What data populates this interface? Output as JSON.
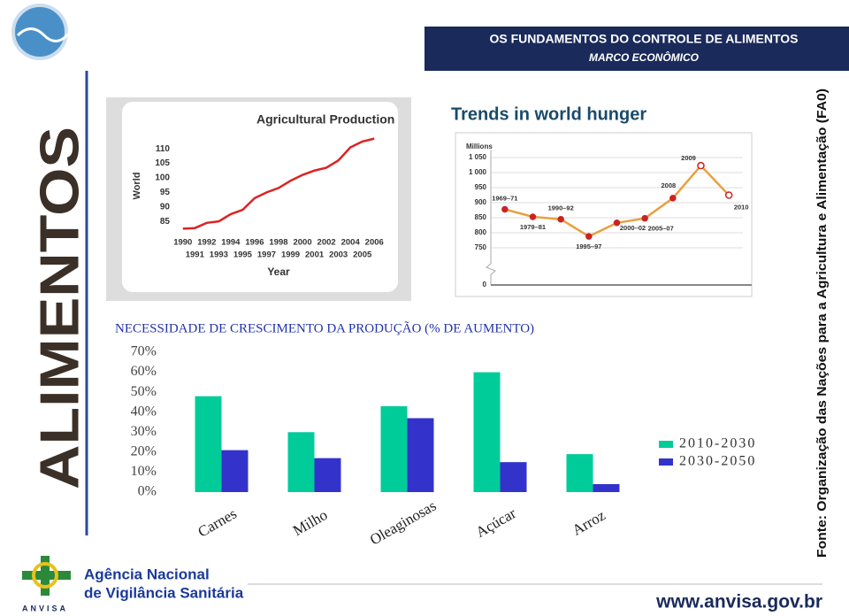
{
  "header": {
    "title": "OS FUNDAMENTOS DO CONTROLE DE ALIMENTOS",
    "subtitle": "MARCO ECONÔMICO"
  },
  "side_title": "ALIMENTOS",
  "source": "Fonte: Organização das Nações para a Agricultura e Alimentação (FA0)",
  "footer": {
    "agency_line1": "Agência Nacional",
    "agency_line2": "de Vigilância Sanitária",
    "logo_text": "ANVISA",
    "url": "www.anvisa.gov.br"
  },
  "chart_data": [
    {
      "type": "line",
      "title": "Agricultural Production",
      "ylabel": "World",
      "xlabel": "Year",
      "x": [
        1990,
        1991,
        1992,
        1993,
        1994,
        1995,
        1996,
        1997,
        1998,
        1999,
        2000,
        2001,
        2002,
        2003,
        2004,
        2005,
        2006
      ],
      "values": [
        82.5,
        82.7,
        84.5,
        85,
        87.5,
        89,
        93,
        95,
        96.5,
        99,
        101,
        102.5,
        103.5,
        106,
        110.5,
        112.5,
        113.5
      ],
      "color": "#dd2222",
      "xlim": [
        1989.5,
        2006.5
      ],
      "xticks": [
        1990,
        1991,
        1992,
        1993,
        1994,
        1995,
        1996,
        1997,
        1998,
        1999,
        2000,
        2001,
        2002,
        2003,
        2004,
        2005,
        2006
      ],
      "ylim": [
        82,
        114
      ],
      "yticks": [
        85,
        90,
        95,
        100,
        105,
        110
      ],
      "grid": false
    },
    {
      "type": "line",
      "title": "Trends in world hunger",
      "ylabel": "Millions",
      "categories": [
        "1969–71",
        "1979–81",
        "1990–92",
        "1995–97",
        "2000–02",
        "2005–07",
        "2008",
        "2009",
        "2010"
      ],
      "values": [
        878,
        853,
        845,
        788,
        833,
        848,
        915,
        1023,
        925
      ],
      "color": "#e8a040",
      "marker_color": "#cc2222",
      "ylim": [
        725,
        1075
      ],
      "axis_break": true,
      "yticks": [
        0,
        750,
        800,
        850,
        900,
        950,
        {
          "value": 1000,
          "label": "1 000"
        },
        {
          "value": 1050,
          "label": "1 050"
        }
      ],
      "grid": true
    },
    {
      "type": "bar",
      "title": "NECESSIDADE DE CRESCIMENTO DA PRODUÇÃO (% DE AUMENTO)",
      "categories": [
        "Carnes",
        "Milho",
        "Oleaginosas",
        "Açúcar",
        "Arroz"
      ],
      "series": [
        {
          "name": "2010-2030",
          "color": "#00cc99",
          "values": [
            48,
            30,
            43,
            60,
            19
          ]
        },
        {
          "name": "2030-2050",
          "color": "#3333cc",
          "values": [
            21,
            17,
            37,
            15,
            4
          ]
        }
      ],
      "ylim": [
        0,
        70
      ],
      "yticks": [
        {
          "value": 0,
          "label": "0%"
        },
        {
          "value": 10,
          "label": "10%"
        },
        {
          "value": 20,
          "label": "20%"
        },
        {
          "value": 30,
          "label": "30%"
        },
        {
          "value": 40,
          "label": "40%"
        },
        {
          "value": 50,
          "label": "50%"
        },
        {
          "value": 60,
          "label": "60%"
        },
        {
          "value": 70,
          "label": "70%"
        }
      ],
      "legend": "right",
      "grid": false
    }
  ]
}
